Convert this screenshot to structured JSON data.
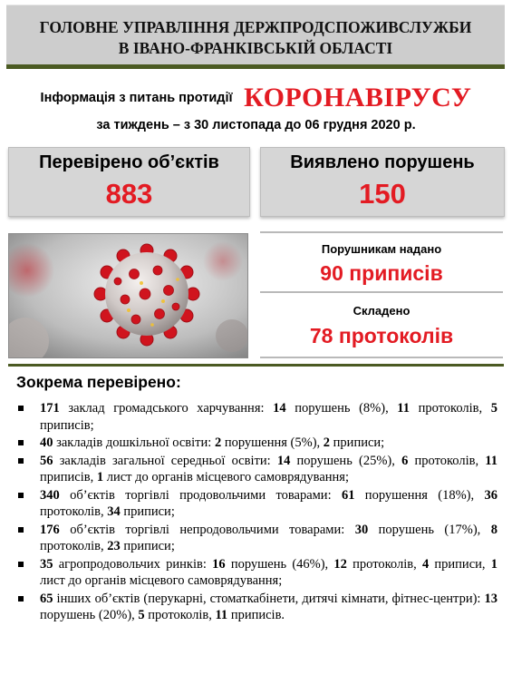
{
  "header": {
    "line1": "ГОЛОВНЕ УПРАВЛІННЯ ДЕРЖПРОДСПОЖИВСЛУЖБИ",
    "line2": "В ІВАНО-ФРАНКІВСЬКІЙ ОБЛАСТІ"
  },
  "title": {
    "prefix": "Інформація з питань протидії",
    "highlight": "КОРОНАВІРУСУ",
    "period": "за тиждень –  з  30 листопада  до 06 грудня 2020 р."
  },
  "stats": {
    "checked_label": "Перевірено об’єктів",
    "checked_value": "883",
    "violations_label": "Виявлено порушень",
    "violations_value": "150"
  },
  "info": {
    "orders_label": "Порушникам надано",
    "orders_value": "90 приписів",
    "protocols_label": "Складено",
    "protocols_value": "78 протоколів"
  },
  "list_title": "Зокрема перевірено:",
  "items": [
    [
      {
        "b": true,
        "t": "171"
      },
      {
        "b": false,
        "t": " заклад громадського харчування: "
      },
      {
        "b": true,
        "t": "14"
      },
      {
        "b": false,
        "t": " порушень (8%), "
      },
      {
        "b": true,
        "t": "11"
      },
      {
        "b": false,
        "t": " протоколів, "
      },
      {
        "b": true,
        "t": "5"
      },
      {
        "b": false,
        "t": " приписів;"
      }
    ],
    [
      {
        "b": true,
        "t": "40"
      },
      {
        "b": false,
        "t": " закладів дошкільної освіти: "
      },
      {
        "b": true,
        "t": "2"
      },
      {
        "b": false,
        "t": " порушення (5%), "
      },
      {
        "b": true,
        "t": "2"
      },
      {
        "b": false,
        "t": " приписи;"
      }
    ],
    [
      {
        "b": true,
        "t": "56"
      },
      {
        "b": false,
        "t": " закладів загальної середньої освіти: "
      },
      {
        "b": true,
        "t": "14"
      },
      {
        "b": false,
        "t": " порушень (25%), "
      },
      {
        "b": true,
        "t": "6"
      },
      {
        "b": false,
        "t": " протоколів, "
      },
      {
        "b": true,
        "t": "11"
      },
      {
        "b": false,
        "t": " приписів, "
      },
      {
        "b": true,
        "t": "1"
      },
      {
        "b": false,
        "t": " лист до органів місцевого самоврядування;"
      }
    ],
    [
      {
        "b": true,
        "t": "340"
      },
      {
        "b": false,
        "t": " об’єктів торгівлі продовольчими товарами: "
      },
      {
        "b": true,
        "t": "61"
      },
      {
        "b": false,
        "t": " порушення (18%), "
      },
      {
        "b": true,
        "t": "36"
      },
      {
        "b": false,
        "t": " протоколів, "
      },
      {
        "b": true,
        "t": "34"
      },
      {
        "b": false,
        "t": " приписи;"
      }
    ],
    [
      {
        "b": true,
        "t": "176"
      },
      {
        "b": false,
        "t": " об’єктів торгівлі непродовольчими товарами: "
      },
      {
        "b": true,
        "t": "30"
      },
      {
        "b": false,
        "t": " порушень (17%), "
      },
      {
        "b": true,
        "t": "8"
      },
      {
        "b": false,
        "t": " протоколів, "
      },
      {
        "b": true,
        "t": "23"
      },
      {
        "b": false,
        "t": " приписи;"
      }
    ],
    [
      {
        "b": true,
        "t": "35"
      },
      {
        "b": false,
        "t": " агропродовольчих ринків: "
      },
      {
        "b": true,
        "t": "16"
      },
      {
        "b": false,
        "t": " порушень (46%), "
      },
      {
        "b": true,
        "t": "12"
      },
      {
        "b": false,
        "t": " протоколів, "
      },
      {
        "b": true,
        "t": "4"
      },
      {
        "b": false,
        "t": " приписи, "
      },
      {
        "b": true,
        "t": "1"
      },
      {
        "b": false,
        "t": " лист до органів місцевого самоврядування;"
      }
    ],
    [
      {
        "b": true,
        "t": "65"
      },
      {
        "b": false,
        "t": " інших об’єктів (перукарні, стоматкабінети, дитячі кімнати, фітнес-центри): "
      },
      {
        "b": true,
        "t": "13"
      },
      {
        "b": false,
        "t": " порушень (20%), "
      },
      {
        "b": true,
        "t": "5"
      },
      {
        "b": false,
        "t": " протоколів, "
      },
      {
        "b": true,
        "t": "11"
      },
      {
        "b": false,
        "t": " приписів."
      }
    ]
  ],
  "colors": {
    "accent": "#e31b23",
    "rule": "#4b5a22",
    "panel": "#d6d6d6"
  }
}
